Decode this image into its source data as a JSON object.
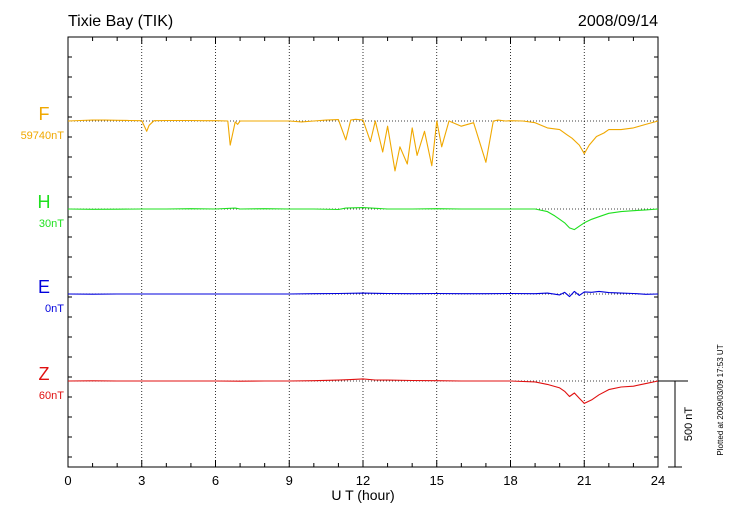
{
  "chart_data": {
    "type": "line",
    "title": "Tixie Bay (TIK)",
    "date": "2008/09/14",
    "xlabel": "U T (hour)",
    "xlim": [
      0,
      24
    ],
    "xticks": [
      "0",
      "3",
      "6",
      "9",
      "12",
      "15",
      "18",
      "21",
      "24"
    ],
    "grid": "dotted vertical lines every 3 hours; dotted horizontal baseline per trace",
    "scale_label": "500 nT",
    "plotted_note": "Plotted at 2009/03/09 17:53 UT",
    "series": [
      {
        "name": "F",
        "baseline_label": "59740nT",
        "color": "#f0a800",
        "x": [
          0,
          0.5,
          1,
          1.5,
          2,
          2.5,
          3,
          3.2,
          3.3,
          3.5,
          4,
          4.5,
          5,
          5.5,
          6,
          6.5,
          6.6,
          6.8,
          6.9,
          7,
          7.5,
          8,
          8.5,
          9,
          9.5,
          10,
          10.5,
          11,
          11.3,
          11.5,
          11.7,
          12,
          12.3,
          12.5,
          12.8,
          13,
          13.3,
          13.5,
          13.8,
          14,
          14.2,
          14.5,
          14.8,
          15,
          15.2,
          15.5,
          16,
          16.5,
          17,
          17.3,
          17.5,
          17.8,
          18,
          18.5,
          19,
          19.5,
          20,
          20.3,
          20.5,
          20.8,
          21,
          21.2,
          21.5,
          21.8,
          22,
          22.5,
          23,
          23.5,
          24
        ],
        "values": [
          0,
          3,
          5,
          5,
          4,
          3,
          2,
          -60,
          -25,
          2,
          3,
          3,
          3,
          2,
          2,
          0,
          -140,
          -5,
          -20,
          0,
          0,
          0,
          0,
          0,
          -5,
          0,
          5,
          8,
          -110,
          5,
          10,
          5,
          -120,
          0,
          -180,
          -30,
          -290,
          -150,
          -250,
          -40,
          -200,
          -60,
          -260,
          0,
          -150,
          0,
          -30,
          -10,
          -240,
          0,
          5,
          0,
          2,
          0,
          -10,
          -40,
          -50,
          -80,
          -100,
          -140,
          -190,
          -140,
          -90,
          -70,
          -50,
          -50,
          -40,
          -20,
          0
        ]
      },
      {
        "name": "H",
        "baseline_label": "30nT",
        "color": "#1ee01e",
        "x": [
          0,
          1,
          2,
          3,
          4,
          5,
          6,
          6.8,
          7,
          8,
          9,
          10,
          11,
          11.3,
          12,
          13,
          14,
          15,
          16,
          17,
          18,
          19,
          19.5,
          19.8,
          20,
          20.2,
          20.4,
          20.6,
          20.8,
          21,
          21.3,
          21.6,
          22,
          22.5,
          23,
          23.5,
          24
        ],
        "values": [
          0,
          -2,
          -1,
          0,
          0,
          2,
          0,
          5,
          0,
          2,
          0,
          0,
          -3,
          5,
          8,
          0,
          0,
          2,
          0,
          0,
          0,
          0,
          -15,
          -40,
          -60,
          -80,
          -110,
          -120,
          -100,
          -80,
          -60,
          -45,
          -25,
          -15,
          -10,
          -5,
          0
        ]
      },
      {
        "name": "E",
        "baseline_label": "0nT",
        "color": "#0000dd",
        "x": [
          0,
          1,
          2,
          3,
          4,
          5,
          6,
          7,
          8,
          9,
          10,
          11,
          12,
          13,
          14,
          15,
          16,
          17,
          18,
          19,
          19.5,
          20,
          20.2,
          20.4,
          20.6,
          20.8,
          21,
          21.3,
          21.6,
          22,
          22.5,
          23,
          23.5,
          24
        ],
        "values": [
          0,
          -1,
          0,
          0,
          0,
          0,
          0,
          0,
          0,
          0,
          2,
          3,
          5,
          3,
          2,
          3,
          2,
          2,
          3,
          2,
          5,
          -5,
          10,
          -15,
          15,
          -8,
          12,
          10,
          15,
          8,
          5,
          3,
          -2,
          0
        ]
      },
      {
        "name": "Z",
        "baseline_label": "60nT",
        "color": "#e01010",
        "x": [
          0,
          1,
          2,
          3,
          4,
          5,
          6,
          7,
          8,
          9,
          10,
          11,
          11.5,
          12,
          12.5,
          13,
          14,
          15,
          16,
          17,
          18,
          19,
          19.5,
          20,
          20.2,
          20.4,
          20.6,
          20.8,
          21,
          21.3,
          21.6,
          22,
          22.5,
          23,
          23.5,
          24
        ],
        "values": [
          0,
          1,
          0,
          0,
          0,
          0,
          0,
          -1,
          0,
          0,
          2,
          5,
          8,
          12,
          6,
          5,
          3,
          2,
          0,
          0,
          0,
          -5,
          -20,
          -40,
          -60,
          -90,
          -70,
          -100,
          -130,
          -110,
          -80,
          -50,
          -35,
          -30,
          -15,
          0
        ]
      }
    ]
  }
}
